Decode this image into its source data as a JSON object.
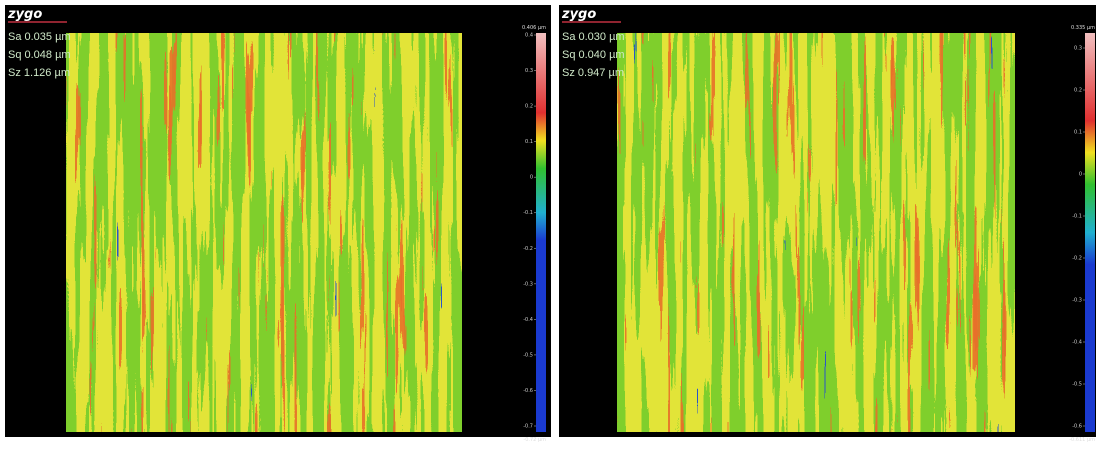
{
  "panels": [
    {
      "logo": "zygo",
      "stats": [
        "Sa 0.035 µm",
        "Sq 0.048 µm",
        "Sz 1.126 µm"
      ],
      "scale_max": "0.406 µm",
      "scale_min": "-0.72 µm",
      "ticks": [
        "0.4",
        "0.3",
        "0.2",
        "0.1",
        "0",
        "-0.1",
        "-0.2",
        "-0.3",
        "-0.4",
        "-0.5",
        "-0.6",
        "-0.7"
      ]
    },
    {
      "logo": "zygo",
      "stats": [
        "Sa 0.030 µm",
        "Sq 0.040 µm",
        "Sz 0.947 µm"
      ],
      "scale_max": "0.335 µm",
      "scale_min": "-0.611 µm",
      "ticks": [
        "0.3",
        "0.2",
        "0.1",
        "0",
        "-0.1",
        "-0.2",
        "-0.3",
        "-0.4",
        "-0.5",
        "-0.6"
      ]
    }
  ]
}
